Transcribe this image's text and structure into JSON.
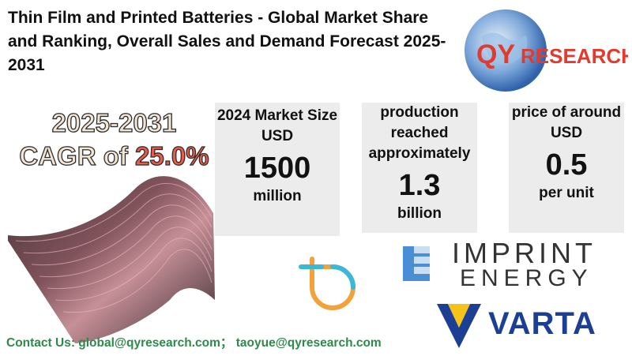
{
  "title": "Thin Film and Printed Batteries - Global Market Share and Ranking, Overall Sales and Demand Forecast 2025-2031",
  "logo": {
    "brand_q": "QY",
    "brand_rest": "RESEARCH"
  },
  "cagr": {
    "years": "2025-2031",
    "prefix": "CAGR of ",
    "value": "25.0%"
  },
  "cards": [
    {
      "label": "2024 Market Size USD",
      "big": "1500",
      "unit": "million"
    },
    {
      "label": "production reached approximately",
      "big": "1.3",
      "unit": "billion"
    },
    {
      "label": "price of around USD",
      "big": "0.5",
      "unit": "per  unit"
    }
  ],
  "companies": {
    "imprint_line1": "IMPRINT",
    "imprint_line2": "ENERGY",
    "varta": "VARTA"
  },
  "contact": "Contact Us: global@qyresearch.com；  taoyue@qyresearch.com",
  "colors": {
    "accent_red": "#e23a2e",
    "varta_blue": "#1c3f94",
    "contact_green": "#2d8a4b",
    "card_bg": "#ececec"
  }
}
